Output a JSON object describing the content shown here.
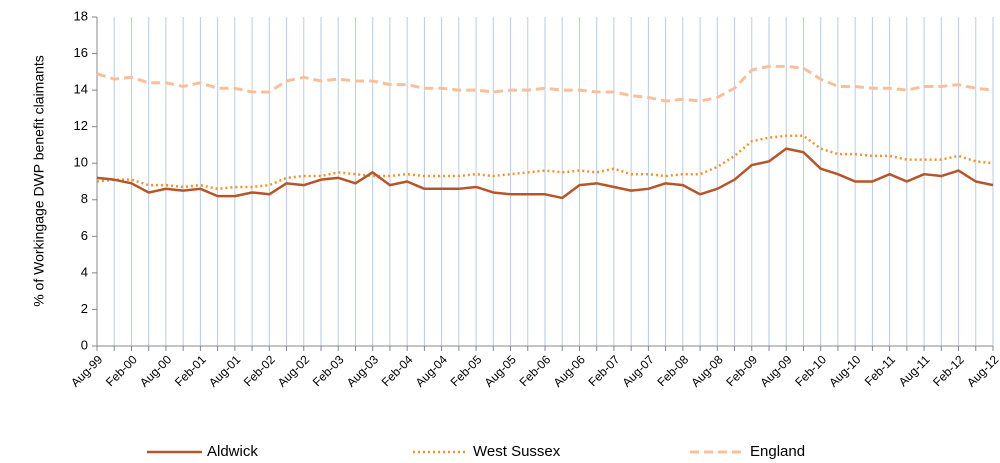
{
  "chart_data": {
    "type": "line",
    "y_label": "% of Workingage DWP benefit claimants",
    "categories": [
      "Aug-99",
      null,
      "Feb-00",
      null,
      "Aug-00",
      null,
      "Feb-01",
      null,
      "Aug-01",
      null,
      "Feb-02",
      null,
      "Aug-02",
      null,
      "Feb-03",
      null,
      "Aug-03",
      null,
      "Feb-04",
      null,
      "Aug-04",
      null,
      "Feb-05",
      null,
      "Aug-05",
      null,
      "Feb-06",
      null,
      "Aug-06",
      null,
      "Feb-07",
      null,
      "Aug-07",
      null,
      "Feb-08",
      null,
      "Aug-08",
      null,
      "Feb-09",
      null,
      "Aug-09",
      null,
      "Feb-10",
      null,
      "Aug-10",
      null,
      "Feb-11",
      null,
      "Aug-11",
      null,
      "Feb-12",
      null,
      "Aug-12"
    ],
    "series": [
      {
        "name": "Aldwick",
        "color": "#b5562a",
        "style": "solid",
        "values": [
          9.2,
          9.1,
          8.9,
          8.4,
          8.6,
          8.5,
          8.6,
          8.2,
          8.2,
          8.4,
          8.3,
          8.9,
          8.8,
          9.1,
          9.2,
          8.9,
          9.5,
          8.8,
          9.0,
          8.6,
          8.6,
          8.6,
          8.7,
          8.4,
          8.3,
          8.3,
          8.3,
          8.1,
          8.8,
          8.9,
          8.7,
          8.5,
          8.6,
          8.9,
          8.8,
          8.3,
          8.6,
          9.1,
          9.9,
          10.1,
          10.8,
          10.6,
          9.7,
          9.4,
          9.0,
          9.0,
          9.4,
          9.0,
          9.4,
          9.3,
          9.6,
          9.0,
          8.8
        ]
      },
      {
        "name": "West Sussex",
        "color": "#f0922f",
        "style": "dotted",
        "values": [
          9.0,
          9.1,
          9.1,
          8.8,
          8.8,
          8.7,
          8.8,
          8.6,
          8.7,
          8.7,
          8.8,
          9.2,
          9.3,
          9.3,
          9.5,
          9.4,
          9.3,
          9.3,
          9.4,
          9.3,
          9.3,
          9.3,
          9.4,
          9.3,
          9.4,
          9.5,
          9.6,
          9.5,
          9.6,
          9.5,
          9.7,
          9.4,
          9.4,
          9.3,
          9.4,
          9.4,
          9.8,
          10.4,
          11.2,
          11.4,
          11.5,
          11.5,
          10.8,
          10.5,
          10.5,
          10.4,
          10.4,
          10.2,
          10.2,
          10.2,
          10.4,
          10.1,
          10.0
        ]
      },
      {
        "name": "England",
        "color": "#f8c09a",
        "style": "dashed",
        "values": [
          14.9,
          14.6,
          14.7,
          14.4,
          14.4,
          14.2,
          14.4,
          14.1,
          14.1,
          13.9,
          13.9,
          14.5,
          14.7,
          14.5,
          14.6,
          14.5,
          14.5,
          14.3,
          14.3,
          14.1,
          14.1,
          14.0,
          14.0,
          13.9,
          14.0,
          14.0,
          14.1,
          14.0,
          14.0,
          13.9,
          13.9,
          13.7,
          13.6,
          13.4,
          13.5,
          13.4,
          13.6,
          14.1,
          15.1,
          15.3,
          15.3,
          15.2,
          14.6,
          14.2,
          14.2,
          14.1,
          14.1,
          14.0,
          14.2,
          14.2,
          14.3,
          14.1,
          14.0
        ]
      }
    ],
    "ylim": [
      0,
      18
    ],
    "yticks": [
      0,
      2,
      4,
      6,
      8,
      10,
      12,
      14,
      16,
      18
    ],
    "grid_color": "#b7cce4",
    "legend": "bottom"
  }
}
